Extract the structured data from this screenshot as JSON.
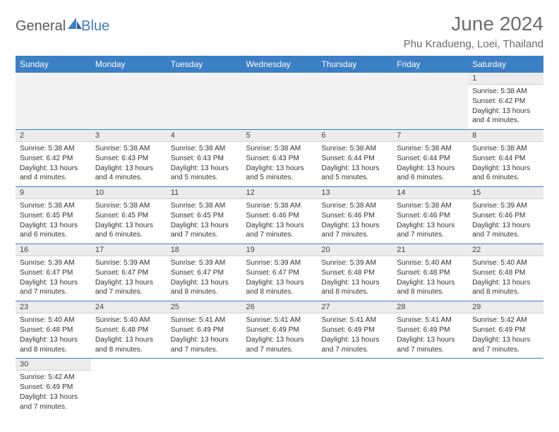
{
  "brand": {
    "part1": "General",
    "part2": "Blue"
  },
  "title": "June 2024",
  "location": "Phu Kradueng, Loei, Thailand",
  "header_bg": "#3b7fc4",
  "daynum_bg": "#ececec",
  "border_color": "#3b7fc4",
  "weekdays": [
    "Sunday",
    "Monday",
    "Tuesday",
    "Wednesday",
    "Thursday",
    "Friday",
    "Saturday"
  ],
  "weeks": [
    [
      null,
      null,
      null,
      null,
      null,
      null,
      {
        "n": "1",
        "sr": "Sunrise: 5:38 AM",
        "ss": "Sunset: 6:42 PM",
        "d1": "Daylight: 13 hours",
        "d2": "and 4 minutes."
      }
    ],
    [
      {
        "n": "2",
        "sr": "Sunrise: 5:38 AM",
        "ss": "Sunset: 6:42 PM",
        "d1": "Daylight: 13 hours",
        "d2": "and 4 minutes."
      },
      {
        "n": "3",
        "sr": "Sunrise: 5:38 AM",
        "ss": "Sunset: 6:43 PM",
        "d1": "Daylight: 13 hours",
        "d2": "and 4 minutes."
      },
      {
        "n": "4",
        "sr": "Sunrise: 5:38 AM",
        "ss": "Sunset: 6:43 PM",
        "d1": "Daylight: 13 hours",
        "d2": "and 5 minutes."
      },
      {
        "n": "5",
        "sr": "Sunrise: 5:38 AM",
        "ss": "Sunset: 6:43 PM",
        "d1": "Daylight: 13 hours",
        "d2": "and 5 minutes."
      },
      {
        "n": "6",
        "sr": "Sunrise: 5:38 AM",
        "ss": "Sunset: 6:44 PM",
        "d1": "Daylight: 13 hours",
        "d2": "and 5 minutes."
      },
      {
        "n": "7",
        "sr": "Sunrise: 5:38 AM",
        "ss": "Sunset: 6:44 PM",
        "d1": "Daylight: 13 hours",
        "d2": "and 6 minutes."
      },
      {
        "n": "8",
        "sr": "Sunrise: 5:38 AM",
        "ss": "Sunset: 6:44 PM",
        "d1": "Daylight: 13 hours",
        "d2": "and 6 minutes."
      }
    ],
    [
      {
        "n": "9",
        "sr": "Sunrise: 5:38 AM",
        "ss": "Sunset: 6:45 PM",
        "d1": "Daylight: 13 hours",
        "d2": "and 6 minutes."
      },
      {
        "n": "10",
        "sr": "Sunrise: 5:38 AM",
        "ss": "Sunset: 6:45 PM",
        "d1": "Daylight: 13 hours",
        "d2": "and 6 minutes."
      },
      {
        "n": "11",
        "sr": "Sunrise: 5:38 AM",
        "ss": "Sunset: 6:45 PM",
        "d1": "Daylight: 13 hours",
        "d2": "and 7 minutes."
      },
      {
        "n": "12",
        "sr": "Sunrise: 5:38 AM",
        "ss": "Sunset: 6:46 PM",
        "d1": "Daylight: 13 hours",
        "d2": "and 7 minutes."
      },
      {
        "n": "13",
        "sr": "Sunrise: 5:38 AM",
        "ss": "Sunset: 6:46 PM",
        "d1": "Daylight: 13 hours",
        "d2": "and 7 minutes."
      },
      {
        "n": "14",
        "sr": "Sunrise: 5:38 AM",
        "ss": "Sunset: 6:46 PM",
        "d1": "Daylight: 13 hours",
        "d2": "and 7 minutes."
      },
      {
        "n": "15",
        "sr": "Sunrise: 5:39 AM",
        "ss": "Sunset: 6:46 PM",
        "d1": "Daylight: 13 hours",
        "d2": "and 7 minutes."
      }
    ],
    [
      {
        "n": "16",
        "sr": "Sunrise: 5:39 AM",
        "ss": "Sunset: 6:47 PM",
        "d1": "Daylight: 13 hours",
        "d2": "and 7 minutes."
      },
      {
        "n": "17",
        "sr": "Sunrise: 5:39 AM",
        "ss": "Sunset: 6:47 PM",
        "d1": "Daylight: 13 hours",
        "d2": "and 7 minutes."
      },
      {
        "n": "18",
        "sr": "Sunrise: 5:39 AM",
        "ss": "Sunset: 6:47 PM",
        "d1": "Daylight: 13 hours",
        "d2": "and 8 minutes."
      },
      {
        "n": "19",
        "sr": "Sunrise: 5:39 AM",
        "ss": "Sunset: 6:47 PM",
        "d1": "Daylight: 13 hours",
        "d2": "and 8 minutes."
      },
      {
        "n": "20",
        "sr": "Sunrise: 5:39 AM",
        "ss": "Sunset: 6:48 PM",
        "d1": "Daylight: 13 hours",
        "d2": "and 8 minutes."
      },
      {
        "n": "21",
        "sr": "Sunrise: 5:40 AM",
        "ss": "Sunset: 6:48 PM",
        "d1": "Daylight: 13 hours",
        "d2": "and 8 minutes."
      },
      {
        "n": "22",
        "sr": "Sunrise: 5:40 AM",
        "ss": "Sunset: 6:48 PM",
        "d1": "Daylight: 13 hours",
        "d2": "and 8 minutes."
      }
    ],
    [
      {
        "n": "23",
        "sr": "Sunrise: 5:40 AM",
        "ss": "Sunset: 6:48 PM",
        "d1": "Daylight: 13 hours",
        "d2": "and 8 minutes."
      },
      {
        "n": "24",
        "sr": "Sunrise: 5:40 AM",
        "ss": "Sunset: 6:48 PM",
        "d1": "Daylight: 13 hours",
        "d2": "and 8 minutes."
      },
      {
        "n": "25",
        "sr": "Sunrise: 5:41 AM",
        "ss": "Sunset: 6:49 PM",
        "d1": "Daylight: 13 hours",
        "d2": "and 7 minutes."
      },
      {
        "n": "26",
        "sr": "Sunrise: 5:41 AM",
        "ss": "Sunset: 6:49 PM",
        "d1": "Daylight: 13 hours",
        "d2": "and 7 minutes."
      },
      {
        "n": "27",
        "sr": "Sunrise: 5:41 AM",
        "ss": "Sunset: 6:49 PM",
        "d1": "Daylight: 13 hours",
        "d2": "and 7 minutes."
      },
      {
        "n": "28",
        "sr": "Sunrise: 5:41 AM",
        "ss": "Sunset: 6:49 PM",
        "d1": "Daylight: 13 hours",
        "d2": "and 7 minutes."
      },
      {
        "n": "29",
        "sr": "Sunrise: 5:42 AM",
        "ss": "Sunset: 6:49 PM",
        "d1": "Daylight: 13 hours",
        "d2": "and 7 minutes."
      }
    ],
    [
      {
        "n": "30",
        "sr": "Sunrise: 5:42 AM",
        "ss": "Sunset: 6:49 PM",
        "d1": "Daylight: 13 hours",
        "d2": "and 7 minutes."
      },
      null,
      null,
      null,
      null,
      null,
      null
    ]
  ]
}
